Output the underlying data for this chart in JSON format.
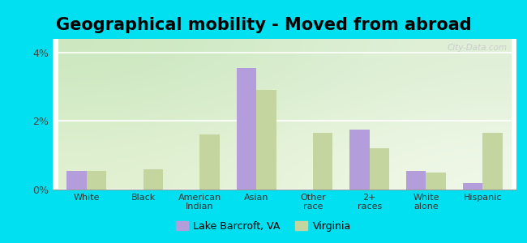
{
  "title": "Geographical mobility - Moved from abroad",
  "categories": [
    "White",
    "Black",
    "American\nIndian",
    "Asian",
    "Other\nrace",
    "2+\nraces",
    "White\nalone",
    "Hispanic"
  ],
  "lake_barcroft": [
    0.55,
    0.0,
    0.0,
    3.55,
    0.0,
    1.75,
    0.55,
    0.2
  ],
  "virginia": [
    0.55,
    0.6,
    1.6,
    2.9,
    1.65,
    1.2,
    0.5,
    1.65
  ],
  "bar_color_lake": "#b39ddb",
  "bar_color_virginia": "#c5d5a0",
  "outer_bg": "#00e0f0",
  "ylim": [
    0,
    4.4
  ],
  "yticks": [
    0,
    2,
    4
  ],
  "ytick_labels": [
    "0%",
    "2%",
    "4%"
  ],
  "legend_lake": "Lake Barcroft, VA",
  "legend_virginia": "Virginia",
  "title_fontsize": 15,
  "bar_width": 0.35
}
